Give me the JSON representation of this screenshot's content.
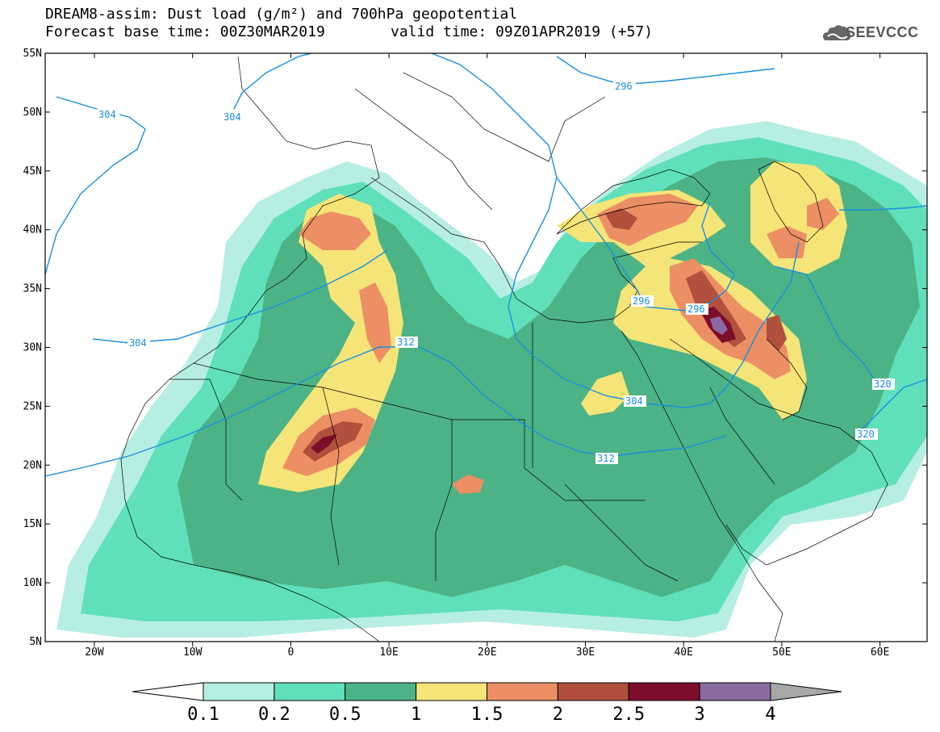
{
  "title": {
    "line1": "DREAM8-assim: Dust load (g/m²) and 700hPa geopotential",
    "line2_base": "Forecast base time: 00Z30MAR2019",
    "line2_valid": "valid time: 09Z01APR2019 (+57)"
  },
  "logo": {
    "text": "SEEVCCC",
    "icon": "cloud-icon"
  },
  "axes": {
    "x_ticks": [
      "20W",
      "10W",
      "0",
      "10E",
      "20E",
      "30E",
      "40E",
      "50E",
      "60E"
    ],
    "y_ticks": [
      "55N",
      "50N",
      "45N",
      "40N",
      "35N",
      "30N",
      "25N",
      "20N",
      "15N",
      "10N",
      "5N"
    ]
  },
  "colorbar": {
    "labels": [
      "0.1",
      "0.2",
      "0.5",
      "1",
      "1.5",
      "2",
      "2.5",
      "3",
      "4"
    ],
    "colors": [
      "#ffffff",
      "#b7eee3",
      "#5fe0bb",
      "#4cb386",
      "#f5e477",
      "#ec8f64",
      "#b0503d",
      "#7c0e2b",
      "#8a6aa0",
      "#a8a8a8"
    ]
  },
  "contours": {
    "color": "#1a8fe0",
    "labels": [
      "304",
      "304",
      "304",
      "296",
      "312",
      "296",
      "296",
      "304",
      "312",
      "320",
      "320"
    ]
  }
}
